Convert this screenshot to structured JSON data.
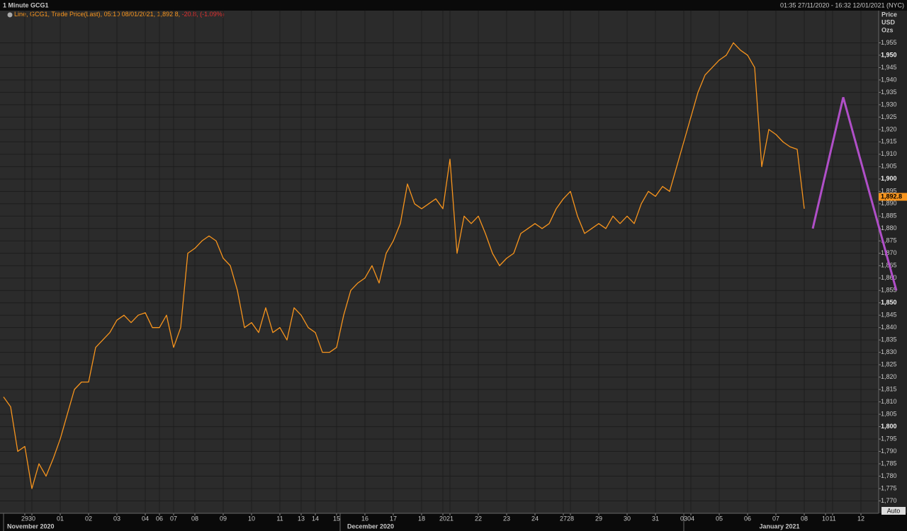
{
  "chart_data": {
    "type": "line",
    "title": "1 Minute GCG1",
    "range_text": "01:35 27/11/2020 - 16:32 12/01/2021 (NYC)",
    "axis_header": [
      "Price",
      "USD",
      "Ozs"
    ],
    "legend_detail": ", 05:10 08/01/2021, 1,892.8, ",
    "legend_change": "-20.8, (-1.09%)",
    "last_price": {
      "value": 1892.8,
      "label": "1,892.8"
    },
    "auto_label": "Auto",
    "months": [
      "November 2020",
      "December 2020",
      "January 2021"
    ],
    "categories": [
      null,
      null,
      null,
      "29",
      "30",
      null,
      null,
      null,
      "01",
      null,
      null,
      null,
      "02",
      null,
      null,
      null,
      "03",
      null,
      null,
      null,
      "04",
      null,
      "06",
      null,
      "07",
      null,
      null,
      "08",
      null,
      null,
      null,
      "09",
      null,
      null,
      null,
      "10",
      null,
      null,
      null,
      "11",
      null,
      null,
      "13",
      null,
      "14",
      null,
      null,
      "15",
      null,
      null,
      null,
      "16",
      null,
      null,
      null,
      "17",
      null,
      null,
      null,
      "18",
      null,
      null,
      "20",
      "21",
      null,
      null,
      null,
      "22",
      null,
      null,
      null,
      "23",
      null,
      null,
      null,
      "24",
      null,
      null,
      null,
      "27",
      "28",
      null,
      null,
      null,
      "29",
      null,
      null,
      null,
      "30",
      null,
      null,
      null,
      "31",
      null,
      null,
      null,
      "03",
      "04",
      null,
      null,
      null,
      "05",
      null,
      null,
      null,
      "06",
      null,
      null,
      null,
      "07",
      null,
      null,
      null,
      "08",
      null,
      null,
      "10",
      "11",
      null,
      null,
      null,
      "12",
      null,
      null
    ],
    "series": [
      {
        "name": "Line, GCG1, Trade Price(Last)",
        "color": "#f7941d",
        "values": [
          1812,
          1808,
          1790,
          1792,
          1775,
          1785,
          1780,
          1787,
          1795,
          1805,
          1815,
          1818,
          1818,
          1832,
          1835,
          1838,
          1843,
          1845,
          1842,
          1845,
          1846,
          1840,
          1840,
          1845,
          1832,
          1840,
          1870,
          1872,
          1875,
          1877,
          1875,
          1868,
          1865,
          1855,
          1840,
          1842,
          1838,
          1848,
          1838,
          1840,
          1835,
          1848,
          1845,
          1840,
          1838,
          1830,
          1830,
          1832,
          1845,
          1855,
          1858,
          1860,
          1865,
          1858,
          1870,
          1875,
          1882,
          1898,
          1890,
          1888,
          1890,
          1892,
          1888,
          1908,
          1870,
          1885,
          1882,
          1885,
          1878,
          1870,
          1865,
          1868,
          1870,
          1878,
          1880,
          1882,
          1880,
          1882,
          1888,
          1892,
          1895,
          1885,
          1878,
          1880,
          1882,
          1880,
          1885,
          1882,
          1885,
          1882,
          1890,
          1895,
          1893,
          1897,
          1895,
          1905,
          1915,
          1925,
          1935,
          1942,
          1945,
          1948,
          1950,
          1955,
          1952,
          1950,
          1945,
          1905,
          1920,
          1918,
          1915,
          1913,
          1912,
          1888,
          null,
          null,
          null,
          null,
          null,
          null,
          null,
          null,
          null,
          null
        ]
      }
    ],
    "trendline": {
      "color": "#b04fc8",
      "x": [
        114.2,
        118.5,
        126
      ],
      "y": [
        1880,
        1933,
        1855
      ]
    },
    "ylim": [
      1765,
      1968
    ],
    "yticks": [
      {
        "value": 1770,
        "label": "1,770"
      },
      {
        "value": 1775,
        "label": "1,775"
      },
      {
        "value": 1780,
        "label": "1,780"
      },
      {
        "value": 1785,
        "label": "1,785"
      },
      {
        "value": 1790,
        "label": "1,790"
      },
      {
        "value": 1795,
        "label": "1,795"
      },
      {
        "value": 1800,
        "label": "1,800"
      },
      {
        "value": 1805,
        "label": "1,805"
      },
      {
        "value": 1810,
        "label": "1,810"
      },
      {
        "value": 1815,
        "label": "1,815"
      },
      {
        "value": 1820,
        "label": "1,820"
      },
      {
        "value": 1825,
        "label": "1,825"
      },
      {
        "value": 1830,
        "label": "1,830"
      },
      {
        "value": 1835,
        "label": "1,835"
      },
      {
        "value": 1840,
        "label": "1,840"
      },
      {
        "value": 1845,
        "label": "1,845"
      },
      {
        "value": 1850,
        "label": "1,850"
      },
      {
        "value": 1855,
        "label": "1,855"
      },
      {
        "value": 1860,
        "label": "1,860"
      },
      {
        "value": 1865,
        "label": "1,865"
      },
      {
        "value": 1870,
        "label": "1,870"
      },
      {
        "value": 1875,
        "label": "1,875"
      },
      {
        "value": 1880,
        "label": "1,880"
      },
      {
        "value": 1885,
        "label": "1,885"
      },
      {
        "value": 1890,
        "label": "1,890"
      },
      {
        "value": 1895,
        "label": "1,895"
      },
      {
        "value": 1900,
        "label": "1,900"
      },
      {
        "value": 1905,
        "label": "1,905"
      },
      {
        "value": 1910,
        "label": "1,910"
      },
      {
        "value": 1915,
        "label": "1,915"
      },
      {
        "value": 1920,
        "label": "1,920"
      },
      {
        "value": 1925,
        "label": "1,925"
      },
      {
        "value": 1930,
        "label": "1,930"
      },
      {
        "value": 1935,
        "label": "1,935"
      },
      {
        "value": 1940,
        "label": "1,940"
      },
      {
        "value": 1945,
        "label": "1,945"
      },
      {
        "value": 1950,
        "label": "1,950"
      },
      {
        "value": 1955,
        "label": "1,955"
      }
    ],
    "grid": true
  }
}
